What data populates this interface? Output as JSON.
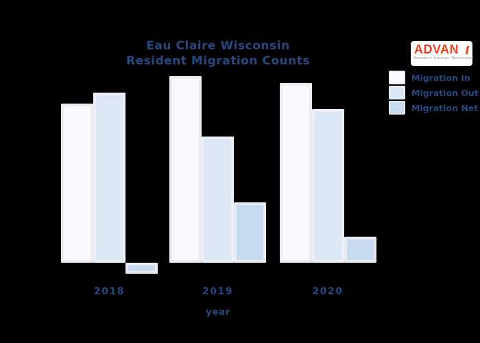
{
  "title": {
    "line1": "Eau Claire Wisconsin",
    "line2": "Resident Migration Counts"
  },
  "logo": {
    "brand": "ADVAN",
    "tagline": "Research through Technology",
    "brand_color": "#e8431e",
    "background": "#ffffff",
    "tagline_color": "#9a9a9a"
  },
  "colors": {
    "page_background": "#000000",
    "text_navy": "#27477f",
    "migration_in_fill": "#f8fafd",
    "migration_in_edge": "#eeeaf2",
    "migration_out_fill": "#dce7f6",
    "migration_out_edge": "#edeff7",
    "migration_net_fill": "#c7daf0",
    "migration_net_edge": "#e9eaf2"
  },
  "chart_data": {
    "type": "bar",
    "title": "Eau Claire Wisconsin Resident Migration Counts",
    "title_lines": [
      "Eau Claire Wisconsin",
      "Resident Migration Counts"
    ],
    "categories": [
      "2018",
      "2019",
      "2020"
    ],
    "series": [
      {
        "name": "Migration In",
        "values": [
          5800,
          6800,
          6550
        ],
        "color": "#f8fafd",
        "edge": "#eeeaf2"
      },
      {
        "name": "Migration Out",
        "values": [
          6200,
          4600,
          5600
        ],
        "color": "#dce7f6",
        "edge": "#edeff7"
      },
      {
        "name": "Migration Net",
        "values": [
          -400,
          2200,
          950
        ],
        "color": "#c7daf0",
        "edge": "#e9eaf2"
      }
    ],
    "xlabel": "year",
    "ylabel": "",
    "ylim": [
      -700,
      7200
    ],
    "grid": false,
    "axes_visible": false,
    "yticks_visible": false,
    "legend_position": "upper right, outside plot",
    "value_note": "y-axis unlabeled in image; values estimated from relative bar heights"
  }
}
